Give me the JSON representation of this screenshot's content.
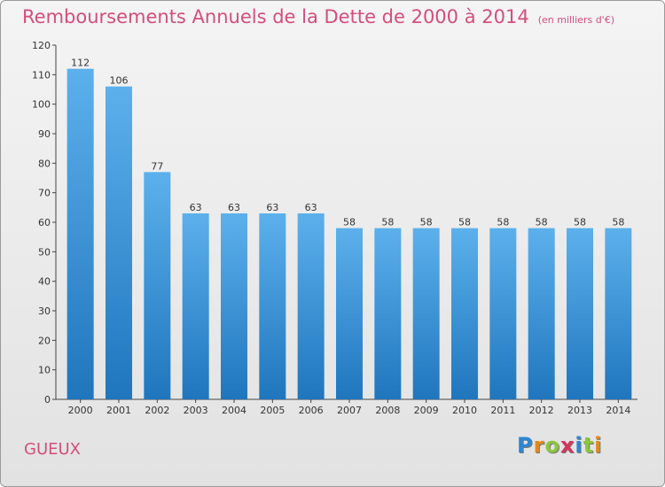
{
  "title": "Remboursements Annuels de la Dette de 2000 à 2014",
  "subtitle": "(en milliers d'€)",
  "commune": "GUEUX",
  "logo": {
    "letters": [
      "P",
      "r",
      "o",
      "x",
      "i",
      "t",
      "i"
    ],
    "colors": [
      "#2e86d1",
      "#e08a1e",
      "#8cc63f",
      "#d4365a",
      "#2e86d1",
      "#8cc63f",
      "#e08a1e"
    ]
  },
  "colors": {
    "bar": "#3d9be0",
    "bar_dark": "#1f76bd",
    "title": "#d44e7c"
  },
  "chart_data": {
    "type": "bar",
    "categories": [
      "2000",
      "2001",
      "2002",
      "2003",
      "2004",
      "2005",
      "2006",
      "2007",
      "2008",
      "2009",
      "2010",
      "2011",
      "2012",
      "2013",
      "2014"
    ],
    "values": [
      112,
      106,
      77,
      63,
      63,
      63,
      63,
      58,
      58,
      58,
      58,
      58,
      58,
      58,
      58
    ],
    "title": "Remboursements Annuels de la Dette de 2000 à 2014",
    "subtitle": "(en milliers d'€)",
    "ylim": [
      0,
      120
    ],
    "yticks": [
      0,
      10,
      20,
      30,
      40,
      50,
      60,
      70,
      80,
      90,
      100,
      110,
      120
    ],
    "grid": false,
    "data_labels": true
  }
}
